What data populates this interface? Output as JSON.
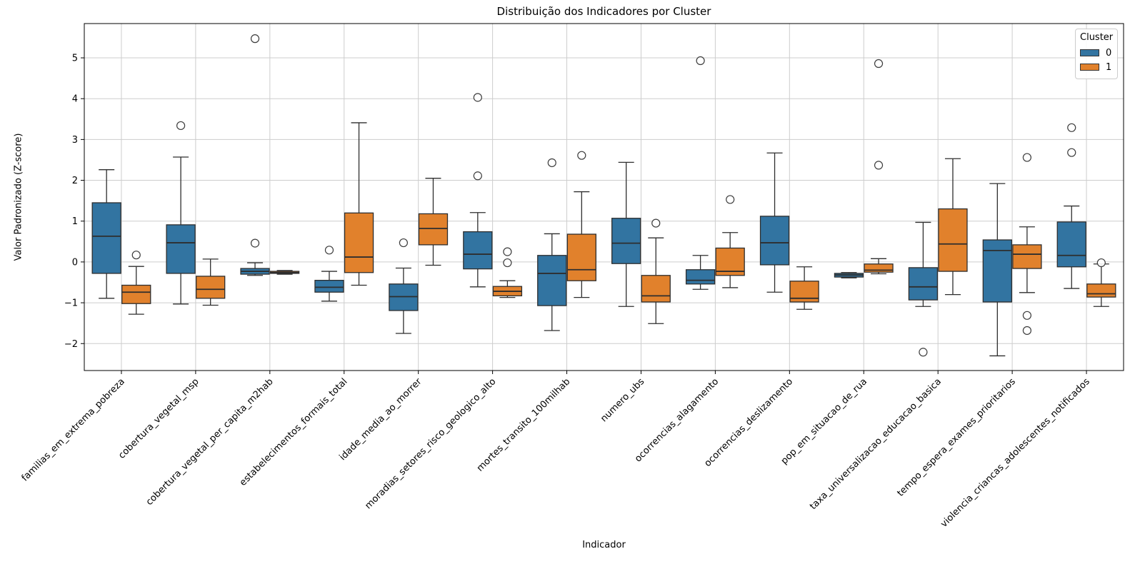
{
  "chart_data": {
    "type": "boxplot",
    "title": "Distribuição dos Indicadores por Cluster",
    "xlabel": "Indicador",
    "ylabel": "Valor Padronizado (Z-score)",
    "ylim": [
      -2.66,
      5.84
    ],
    "yticks": [
      -2,
      -1,
      0,
      1,
      2,
      3,
      4,
      5
    ],
    "grid": true,
    "legend": {
      "title": "Cluster",
      "position": "upper right",
      "entries": [
        {
          "label": "0",
          "color": "#3274a1"
        },
        {
          "label": "1",
          "color": "#e1812c"
        }
      ]
    },
    "categories": [
      "familias_em_extrema_pobreza",
      "cobertura_vegetal_msp",
      "cobertura_vegetal_per_capita_m2hab",
      "estabelecimentos_formais_total",
      "idade_media_ao_morrer",
      "moradias_setores_risco_geologico_alto",
      "mortes_transito_100milhab",
      "numero_ubs",
      "ocorrencias_alagamento",
      "ocorrencias_deslizamento",
      "pop_em_situacao_de_rua",
      "taxa_universalizacao_educacao_basica",
      "tempo_espera_exames_prioritarios",
      "violencia_criancas_adolescentes_notificados"
    ],
    "series": [
      {
        "name": "0",
        "color": "#3274a1",
        "boxes": [
          {
            "whislo": -0.89,
            "q1": -0.28,
            "med": 0.63,
            "q3": 1.45,
            "whishi": 2.26,
            "fliers": []
          },
          {
            "whislo": -1.03,
            "q1": -0.28,
            "med": 0.47,
            "q3": 0.91,
            "whishi": 2.57,
            "fliers": [
              3.34
            ]
          },
          {
            "whislo": -0.33,
            "q1": -0.3,
            "med": -0.23,
            "q3": -0.16,
            "whishi": -0.02,
            "fliers": [
              5.47,
              0.46
            ]
          },
          {
            "whislo": -0.96,
            "q1": -0.74,
            "med": -0.62,
            "q3": -0.45,
            "whishi": -0.23,
            "fliers": [
              0.29
            ]
          },
          {
            "whislo": -1.75,
            "q1": -1.19,
            "med": -0.85,
            "q3": -0.54,
            "whishi": -0.15,
            "fliers": [
              0.47
            ]
          },
          {
            "whislo": -0.61,
            "q1": -0.17,
            "med": 0.19,
            "q3": 0.74,
            "whishi": 1.21,
            "fliers": [
              4.03,
              2.11
            ]
          },
          {
            "whislo": -1.68,
            "q1": -1.07,
            "med": -0.28,
            "q3": 0.16,
            "whishi": 0.69,
            "fliers": [
              2.43
            ]
          },
          {
            "whislo": -1.09,
            "q1": -0.04,
            "med": 0.46,
            "q3": 1.07,
            "whishi": 2.44,
            "fliers": []
          },
          {
            "whislo": -0.67,
            "q1": -0.54,
            "med": -0.45,
            "q3": -0.19,
            "whishi": 0.16,
            "fliers": [
              4.93
            ]
          },
          {
            "whislo": -0.74,
            "q1": -0.07,
            "med": 0.47,
            "q3": 1.12,
            "whishi": 2.67,
            "fliers": []
          },
          {
            "whislo": -0.39,
            "q1": -0.37,
            "med": -0.32,
            "q3": -0.28,
            "whishi": -0.26,
            "fliers": []
          },
          {
            "whislo": -1.09,
            "q1": -0.93,
            "med": -0.61,
            "q3": -0.14,
            "whishi": 0.97,
            "fliers": [
              -2.21
            ]
          },
          {
            "whislo": -2.3,
            "q1": -0.98,
            "med": 0.28,
            "q3": 0.54,
            "whishi": 1.92,
            "fliers": []
          },
          {
            "whislo": -0.65,
            "q1": -0.12,
            "med": 0.16,
            "q3": 0.98,
            "whishi": 1.37,
            "fliers": [
              3.29,
              2.68
            ]
          }
        ]
      },
      {
        "name": "1",
        "color": "#e1812c",
        "boxes": [
          {
            "whislo": -1.28,
            "q1": -1.02,
            "med": -0.74,
            "q3": -0.57,
            "whishi": -0.11,
            "fliers": [
              0.17
            ]
          },
          {
            "whislo": -1.06,
            "q1": -0.89,
            "med": -0.67,
            "q3": -0.35,
            "whishi": 0.07,
            "fliers": []
          },
          {
            "whislo": -0.3,
            "q1": -0.28,
            "med": -0.26,
            "q3": -0.23,
            "whishi": -0.21,
            "fliers": []
          },
          {
            "whislo": -0.57,
            "q1": -0.26,
            "med": 0.12,
            "q3": 1.2,
            "whishi": 3.41,
            "fliers": []
          },
          {
            "whislo": -0.08,
            "q1": 0.42,
            "med": 0.82,
            "q3": 1.18,
            "whishi": 2.05,
            "fliers": []
          },
          {
            "whislo": -0.87,
            "q1": -0.83,
            "med": -0.72,
            "q3": -0.6,
            "whishi": -0.46,
            "fliers": [
              0.25,
              -0.02
            ]
          },
          {
            "whislo": -0.87,
            "q1": -0.46,
            "med": -0.19,
            "q3": 0.68,
            "whishi": 1.72,
            "fliers": [
              2.61
            ]
          },
          {
            "whislo": -1.51,
            "q1": -0.98,
            "med": -0.83,
            "q3": -0.33,
            "whishi": 0.59,
            "fliers": [
              0.95
            ]
          },
          {
            "whislo": -0.63,
            "q1": -0.33,
            "med": -0.23,
            "q3": 0.34,
            "whishi": 0.72,
            "fliers": [
              1.53
            ]
          },
          {
            "whislo": -1.16,
            "q1": -0.98,
            "med": -0.89,
            "q3": -0.47,
            "whishi": -0.12,
            "fliers": []
          },
          {
            "whislo": -0.29,
            "q1": -0.25,
            "med": -0.2,
            "q3": -0.05,
            "whishi": 0.08,
            "fliers": [
              4.86,
              2.37
            ]
          },
          {
            "whislo": -0.8,
            "q1": -0.23,
            "med": 0.44,
            "q3": 1.3,
            "whishi": 2.53,
            "fliers": []
          },
          {
            "whislo": -0.75,
            "q1": -0.16,
            "med": 0.19,
            "q3": 0.42,
            "whishi": 0.86,
            "fliers": [
              2.56,
              -1.31,
              -1.68
            ]
          },
          {
            "whislo": -1.09,
            "q1": -0.86,
            "med": -0.78,
            "q3": -0.54,
            "whishi": -0.05,
            "fliers": [
              -0.02
            ]
          }
        ]
      }
    ]
  }
}
